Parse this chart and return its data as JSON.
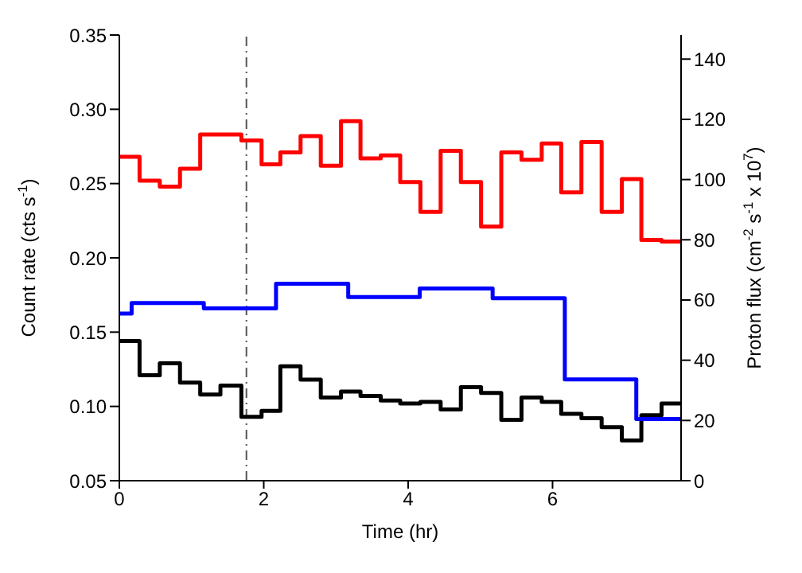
{
  "chart_data": {
    "type": "step",
    "xlabel": "Time (hr)",
    "ylabel": "Count rate (cts s$^{-1}$)",
    "y2label": "Proton flux (cm$^{-2}$ s$^{-1}$ x 10$^{7}$)",
    "xlim": [
      0,
      7.78
    ],
    "xticks": [
      0,
      2,
      4,
      6
    ],
    "ylim": [
      0.05,
      0.35
    ],
    "yticks": [
      0.05,
      {
        "value": 0.1,
        "label": "0.10"
      },
      0.15,
      {
        "value": 0.2,
        "label": "0.20"
      },
      0.25,
      {
        "value": 0.3,
        "label": "0.30"
      },
      0.35
    ],
    "y2lim": [
      0,
      148
    ],
    "y2ticks": [
      0,
      20,
      40,
      60,
      80,
      100,
      120,
      140
    ],
    "grid": false,
    "legend": false,
    "line_style": "solid",
    "marker": "none",
    "series": [
      {
        "color": "#ff0000",
        "x": [
          0,
          0.28,
          0.56,
          0.84,
          1.12,
          1.4,
          1.69,
          1.97,
          2.23,
          2.51,
          2.79,
          3.07,
          3.34,
          3.62,
          3.89,
          4.17,
          4.45,
          4.73,
          5.01,
          5.29,
          5.57,
          5.85,
          6.12,
          6.4,
          6.68,
          6.96,
          7.23,
          7.51,
          7.78
        ],
        "values": [
          0.268,
          0.252,
          0.248,
          0.26,
          0.283,
          0.283,
          0.279,
          0.263,
          0.271,
          0.282,
          0.262,
          0.292,
          0.267,
          0.269,
          0.251,
          0.231,
          0.272,
          0.251,
          0.221,
          0.271,
          0.266,
          0.277,
          0.244,
          0.278,
          0.231,
          0.253,
          0.212,
          0.211,
          0.211
        ]
      },
      {
        "color": "#000000",
        "x": [
          0,
          0.28,
          0.56,
          0.84,
          1.12,
          1.4,
          1.69,
          1.97,
          2.23,
          2.51,
          2.79,
          3.07,
          3.34,
          3.62,
          3.89,
          4.17,
          4.45,
          4.73,
          5.01,
          5.29,
          5.57,
          5.85,
          6.12,
          6.4,
          6.68,
          6.96,
          7.23,
          7.51,
          7.78
        ],
        "values": [
          0.144,
          0.121,
          0.129,
          0.116,
          0.108,
          0.114,
          0.093,
          0.097,
          0.127,
          0.118,
          0.106,
          0.11,
          0.107,
          0.104,
          0.102,
          0.103,
          0.098,
          0.113,
          0.109,
          0.091,
          0.106,
          0.103,
          0.095,
          0.092,
          0.086,
          0.077,
          0.094,
          0.102,
          0.102
        ]
      },
      {
        "color": "#0000ff",
        "axis": "y2",
        "x": [
          0,
          0.17,
          1.17,
          2.17,
          3.17,
          4.16,
          5.17,
          6.17,
          7.16,
          7.78
        ],
        "values": [
          55.5,
          59.0,
          57.2,
          65.4,
          61.0,
          63.8,
          60.6,
          33.6,
          20.5,
          20.5
        ]
      }
    ],
    "ref_lines": [
      {
        "axis": "x",
        "value": 1.76,
        "color": "#555555",
        "line_style": "dashed"
      }
    ]
  }
}
